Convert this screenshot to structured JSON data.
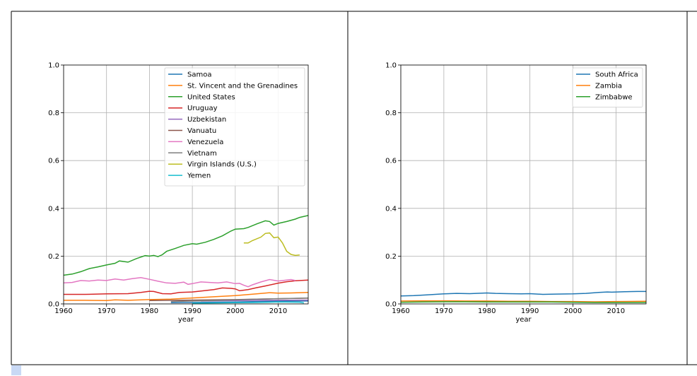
{
  "colors": {
    "c0": "#1f77b4",
    "c1": "#ff7f0e",
    "c2": "#2ca02c",
    "c3": "#d62728",
    "c4": "#9467bd",
    "c5": "#8c564b",
    "c6": "#e377c2",
    "c7": "#7f7f7f",
    "c8": "#bcbd22",
    "c9": "#17becf"
  },
  "chart_data": [
    {
      "type": "line",
      "xlabel": "year",
      "ylabel": "",
      "xlim": [
        1960,
        2017
      ],
      "ylim": [
        0,
        1.0
      ],
      "xticks": [
        "1960",
        "1970",
        "1980",
        "1990",
        "2000",
        "2010"
      ],
      "yticks": [
        "0.0",
        "0.2",
        "0.4",
        "0.6",
        "0.8",
        "1.0"
      ],
      "grid": true,
      "legend_position": "top-right",
      "series": [
        {
          "name": "Samoa",
          "color_key": "c0",
          "points": [
            [
              1985,
              0.005
            ],
            [
              1990,
              0.006
            ],
            [
              1995,
              0.007
            ],
            [
              2000,
              0.008
            ],
            [
              2005,
              0.01
            ],
            [
              2010,
              0.011
            ],
            [
              2017,
              0.012
            ]
          ]
        },
        {
          "name": "St. Vincent and the Grenadines",
          "color_key": "c1",
          "points": [
            [
              1960,
              0.015
            ],
            [
              1965,
              0.015
            ],
            [
              1970,
              0.014
            ],
            [
              1972,
              0.017
            ],
            [
              1975,
              0.015
            ],
            [
              1980,
              0.018
            ],
            [
              1985,
              0.02
            ],
            [
              1990,
              0.025
            ],
            [
              1995,
              0.03
            ],
            [
              2000,
              0.035
            ],
            [
              2005,
              0.042
            ],
            [
              2008,
              0.047
            ],
            [
              2010,
              0.045
            ],
            [
              2013,
              0.046
            ],
            [
              2017,
              0.048
            ]
          ]
        },
        {
          "name": "United States",
          "color_key": "c2",
          "points": [
            [
              1960,
              0.12
            ],
            [
              1962,
              0.125
            ],
            [
              1964,
              0.135
            ],
            [
              1966,
              0.148
            ],
            [
              1968,
              0.155
            ],
            [
              1970,
              0.163
            ],
            [
              1972,
              0.17
            ],
            [
              1973,
              0.18
            ],
            [
              1975,
              0.175
            ],
            [
              1977,
              0.19
            ],
            [
              1979,
              0.202
            ],
            [
              1980,
              0.2
            ],
            [
              1981,
              0.203
            ],
            [
              1982,
              0.198
            ],
            [
              1983,
              0.206
            ],
            [
              1984,
              0.22
            ],
            [
              1986,
              0.232
            ],
            [
              1988,
              0.245
            ],
            [
              1990,
              0.252
            ],
            [
              1991,
              0.25
            ],
            [
              1993,
              0.258
            ],
            [
              1995,
              0.27
            ],
            [
              1997,
              0.285
            ],
            [
              1999,
              0.305
            ],
            [
              2000,
              0.313
            ],
            [
              2002,
              0.315
            ],
            [
              2003,
              0.32
            ],
            [
              2005,
              0.335
            ],
            [
              2007,
              0.348
            ],
            [
              2008,
              0.345
            ],
            [
              2009,
              0.33
            ],
            [
              2010,
              0.337
            ],
            [
              2012,
              0.345
            ],
            [
              2014,
              0.355
            ],
            [
              2015,
              0.362
            ],
            [
              2017,
              0.37
            ]
          ]
        },
        {
          "name": "Uruguay",
          "color_key": "c3",
          "points": [
            [
              1960,
              0.04
            ],
            [
              1965,
              0.04
            ],
            [
              1970,
              0.042
            ],
            [
              1975,
              0.043
            ],
            [
              1978,
              0.048
            ],
            [
              1980,
              0.053
            ],
            [
              1981,
              0.052
            ],
            [
              1983,
              0.043
            ],
            [
              1985,
              0.042
            ],
            [
              1987,
              0.048
            ],
            [
              1990,
              0.05
            ],
            [
              1993,
              0.056
            ],
            [
              1995,
              0.06
            ],
            [
              1997,
              0.067
            ],
            [
              1999,
              0.065
            ],
            [
              2000,
              0.063
            ],
            [
              2001,
              0.055
            ],
            [
              2003,
              0.06
            ],
            [
              2005,
              0.068
            ],
            [
              2007,
              0.075
            ],
            [
              2010,
              0.087
            ],
            [
              2012,
              0.093
            ],
            [
              2014,
              0.097
            ],
            [
              2017,
              0.1
            ]
          ]
        },
        {
          "name": "Uzbekistan",
          "color_key": "c4",
          "points": [
            [
              1992,
              0.012
            ],
            [
              1995,
              0.013
            ],
            [
              2000,
              0.014
            ],
            [
              2005,
              0.015
            ],
            [
              2010,
              0.015
            ],
            [
              2015,
              0.016
            ],
            [
              2017,
              0.016
            ]
          ]
        },
        {
          "name": "Vanuatu",
          "color_key": "c5",
          "points": [
            [
              1980,
              0.014
            ],
            [
              1985,
              0.015
            ],
            [
              1990,
              0.016
            ],
            [
              1995,
              0.017
            ],
            [
              2000,
              0.018
            ],
            [
              2005,
              0.02
            ],
            [
              2010,
              0.022
            ],
            [
              2017,
              0.024
            ]
          ]
        },
        {
          "name": "Venezuela",
          "color_key": "c6",
          "points": [
            [
              1960,
              0.088
            ],
            [
              1962,
              0.09
            ],
            [
              1964,
              0.098
            ],
            [
              1966,
              0.096
            ],
            [
              1968,
              0.1
            ],
            [
              1970,
              0.098
            ],
            [
              1972,
              0.104
            ],
            [
              1974,
              0.1
            ],
            [
              1976,
              0.106
            ],
            [
              1978,
              0.11
            ],
            [
              1980,
              0.103
            ],
            [
              1982,
              0.095
            ],
            [
              1984,
              0.088
            ],
            [
              1986,
              0.086
            ],
            [
              1988,
              0.091
            ],
            [
              1989,
              0.082
            ],
            [
              1990,
              0.085
            ],
            [
              1992,
              0.092
            ],
            [
              1994,
              0.09
            ],
            [
              1996,
              0.088
            ],
            [
              1998,
              0.092
            ],
            [
              2000,
              0.085
            ],
            [
              2001,
              0.086
            ],
            [
              2002,
              0.078
            ],
            [
              2003,
              0.072
            ],
            [
              2004,
              0.08
            ],
            [
              2006,
              0.092
            ],
            [
              2008,
              0.102
            ],
            [
              2010,
              0.096
            ],
            [
              2012,
              0.1
            ],
            [
              2013,
              0.102
            ],
            [
              2014,
              0.098
            ]
          ]
        },
        {
          "name": "Vietnam",
          "color_key": "c7",
          "points": [
            [
              1985,
              0.01
            ],
            [
              1990,
              0.012
            ],
            [
              1995,
              0.014
            ],
            [
              2000,
              0.017
            ],
            [
              2005,
              0.02
            ],
            [
              2010,
              0.022
            ],
            [
              2017,
              0.025
            ]
          ]
        },
        {
          "name": "Virgin Islands (U.S.)",
          "color_key": "c8",
          "points": [
            [
              2002,
              0.255
            ],
            [
              2003,
              0.255
            ],
            [
              2004,
              0.265
            ],
            [
              2006,
              0.28
            ],
            [
              2007,
              0.295
            ],
            [
              2008,
              0.297
            ],
            [
              2009,
              0.277
            ],
            [
              2010,
              0.28
            ],
            [
              2011,
              0.255
            ],
            [
              2012,
              0.22
            ],
            [
              2013,
              0.207
            ],
            [
              2014,
              0.203
            ],
            [
              2015,
              0.205
            ]
          ]
        },
        {
          "name": "Yemen",
          "color_key": "c9",
          "points": [
            [
              1990,
              0.003
            ],
            [
              1995,
              0.004
            ],
            [
              2000,
              0.005
            ],
            [
              2005,
              0.006
            ],
            [
              2010,
              0.008
            ],
            [
              2015,
              0.007
            ],
            [
              2016,
              0.004
            ]
          ]
        }
      ]
    },
    {
      "type": "line",
      "xlabel": "year",
      "ylabel": "",
      "xlim": [
        1960,
        2017
      ],
      "ylim": [
        0,
        1.0
      ],
      "xticks": [
        "1960",
        "1970",
        "1980",
        "1990",
        "2000",
        "2010"
      ],
      "yticks": [
        "0.0",
        "0.2",
        "0.4",
        "0.6",
        "0.8",
        "1.0"
      ],
      "grid": true,
      "legend_position": "top-right",
      "series": [
        {
          "name": "South Africa",
          "color_key": "c0",
          "points": [
            [
              1960,
              0.033
            ],
            [
              1963,
              0.035
            ],
            [
              1966,
              0.038
            ],
            [
              1970,
              0.042
            ],
            [
              1973,
              0.044
            ],
            [
              1976,
              0.043
            ],
            [
              1980,
              0.046
            ],
            [
              1982,
              0.044
            ],
            [
              1985,
              0.043
            ],
            [
              1988,
              0.042
            ],
            [
              1990,
              0.043
            ],
            [
              1993,
              0.04
            ],
            [
              1996,
              0.041
            ],
            [
              2000,
              0.042
            ],
            [
              2003,
              0.044
            ],
            [
              2006,
              0.048
            ],
            [
              2008,
              0.05
            ],
            [
              2009,
              0.049
            ],
            [
              2012,
              0.051
            ],
            [
              2015,
              0.052
            ],
            [
              2017,
              0.052
            ]
          ]
        },
        {
          "name": "Zambia",
          "color_key": "c1",
          "points": [
            [
              1960,
              0.012
            ],
            [
              1965,
              0.013
            ],
            [
              1970,
              0.013
            ],
            [
              1975,
              0.012
            ],
            [
              1980,
              0.012
            ],
            [
              1985,
              0.011
            ],
            [
              1990,
              0.011
            ],
            [
              1995,
              0.01
            ],
            [
              2000,
              0.01
            ],
            [
              2005,
              0.009
            ],
            [
              2010,
              0.01
            ],
            [
              2017,
              0.011
            ]
          ]
        },
        {
          "name": "Zimbabwe",
          "color_key": "c2",
          "points": [
            [
              1960,
              0.007
            ],
            [
              1965,
              0.008
            ],
            [
              1970,
              0.009
            ],
            [
              1975,
              0.009
            ],
            [
              1980,
              0.008
            ],
            [
              1985,
              0.008
            ],
            [
              1990,
              0.008
            ],
            [
              1995,
              0.008
            ],
            [
              2000,
              0.007
            ],
            [
              2005,
              0.006
            ],
            [
              2010,
              0.006
            ],
            [
              2017,
              0.006
            ]
          ]
        }
      ]
    }
  ]
}
